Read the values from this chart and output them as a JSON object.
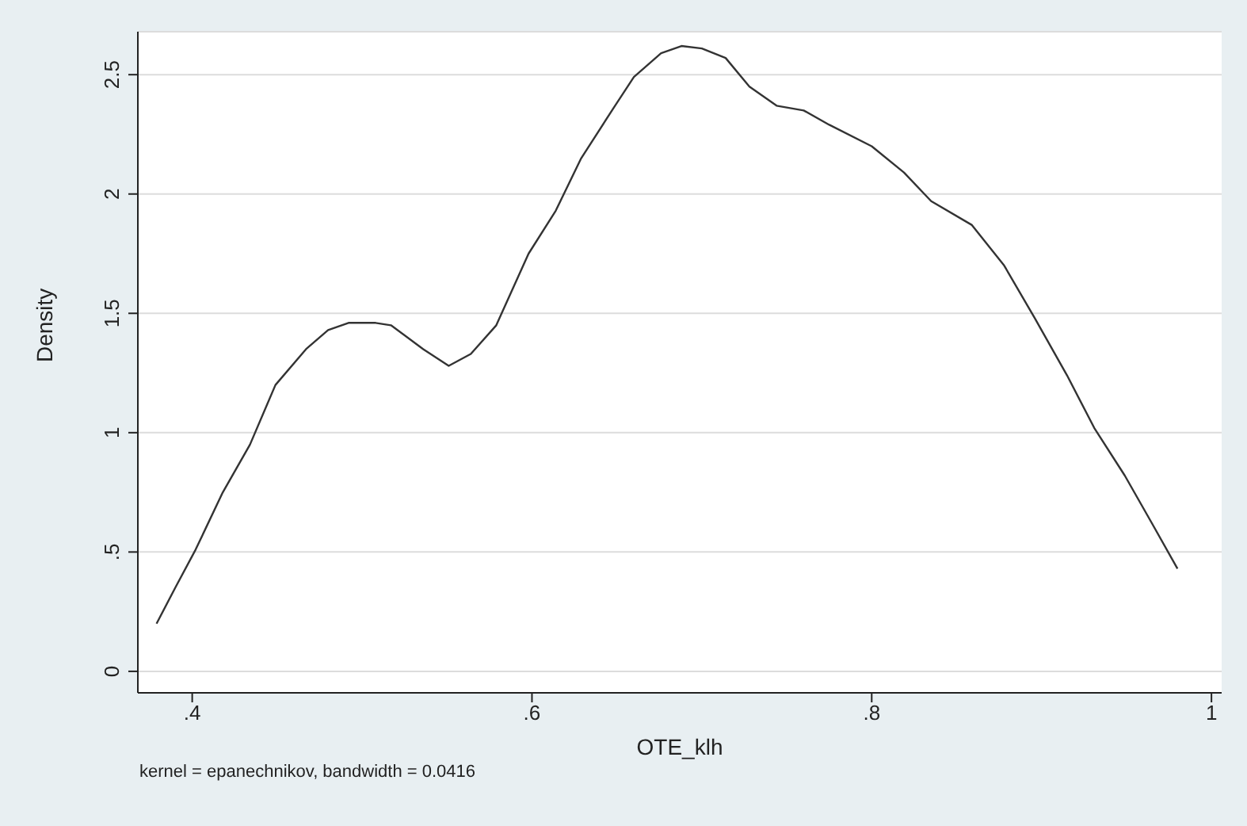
{
  "chart_data": {
    "type": "line",
    "xlabel": "OTE_klh",
    "ylabel": "Density",
    "annotations": [
      "kernel = epanechnikov, bandwidth = 0.0416"
    ],
    "x": [
      0.379,
      0.39,
      0.402,
      0.418,
      0.434,
      0.449,
      0.467,
      0.48,
      0.492,
      0.508,
      0.517,
      0.536,
      0.551,
      0.564,
      0.579,
      0.598,
      0.614,
      0.629,
      0.648,
      0.66,
      0.676,
      0.688,
      0.7,
      0.714,
      0.728,
      0.744,
      0.76,
      0.775,
      0.8,
      0.819,
      0.835,
      0.859,
      0.878,
      0.896,
      0.915,
      0.931,
      0.949,
      0.965,
      0.98
    ],
    "series": [
      {
        "color": "#333333",
        "values": [
          0.2,
          0.35,
          0.51,
          0.75,
          0.95,
          1.2,
          1.35,
          1.43,
          1.46,
          1.46,
          1.45,
          1.35,
          1.28,
          1.33,
          1.45,
          1.75,
          1.93,
          2.15,
          2.36,
          2.49,
          2.59,
          2.62,
          2.61,
          2.57,
          2.45,
          2.37,
          2.35,
          2.29,
          2.2,
          2.09,
          1.97,
          1.87,
          1.7,
          1.48,
          1.24,
          1.02,
          0.82,
          0.62,
          0.43
        ]
      }
    ],
    "xlim": [
      0.368,
      1.006
    ],
    "ylim": [
      -0.09,
      2.68
    ],
    "xticks": [
      {
        "value": 0.4,
        "label": ".4"
      },
      {
        "value": 0.6,
        "label": ".6"
      },
      {
        "value": 0.8,
        "label": ".8"
      },
      1
    ],
    "yticks": [
      0,
      {
        "value": 0.5,
        "label": ".5"
      },
      1,
      1.5,
      2,
      2.5
    ],
    "grid": "y",
    "legend": false,
    "marker": "none",
    "line_style": "solid"
  }
}
